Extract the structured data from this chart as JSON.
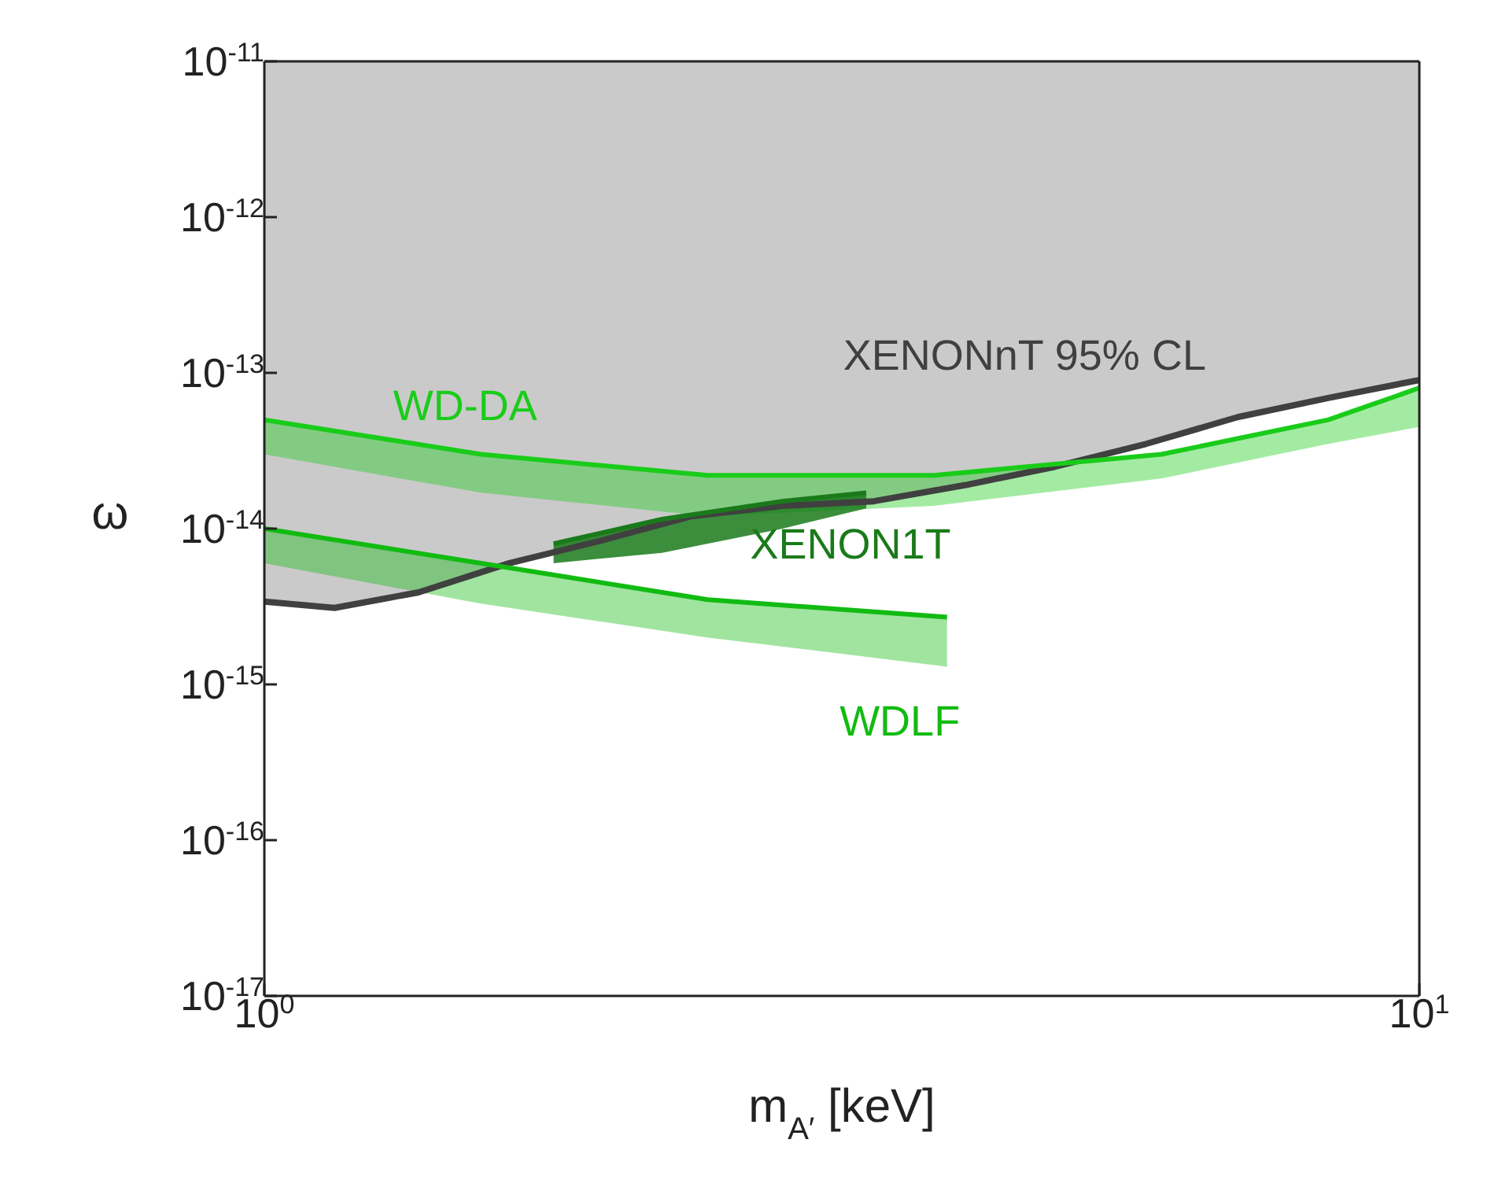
{
  "chart_data": {
    "type": "line",
    "xlabel": "m$_{A′}$ [keV]",
    "ylabel": "ω",
    "log": "xy",
    "grid": false,
    "legend": false,
    "marker": "none",
    "xlim": [
      1,
      10
    ],
    "xticks": [
      {
        "value": 1,
        "label": "10$^{0}$"
      },
      {
        "value": 10,
        "label": "10$^{1}$"
      }
    ],
    "ylim": [
      1e-17,
      1e-11
    ],
    "yticks": [
      {
        "value": 1e-17,
        "label": "10$^{-17}$"
      },
      {
        "value": 1e-16,
        "label": "10$^{-16}$"
      },
      {
        "value": 1e-15,
        "label": "10$^{-15}$"
      },
      {
        "value": 1e-14,
        "label": "10$^{-14}$"
      },
      {
        "value": 1e-13,
        "label": "10$^{-13}$"
      },
      {
        "value": 1e-12,
        "label": "10$^{-12}$"
      },
      {
        "value": 1e-11,
        "label": "10$^{-11}$"
      }
    ],
    "series": [
      {
        "name": "XENONnT 95% CL",
        "color": "#404040",
        "x": [
          1,
          1.15,
          1.36,
          1.63,
          1.96,
          2.34,
          2.81,
          3.37,
          4.04,
          4.84,
          5.8,
          6.96,
          8.34,
          10
        ],
        "values": [
          3.4e-15,
          3.1e-15,
          3.9e-15,
          6e-15,
          8.4e-15,
          1.2e-14,
          1.4e-14,
          1.5e-14,
          1.9e-14,
          2.5e-14,
          3.5e-14,
          5.2e-14,
          6.9e-14,
          9e-14
        ],
        "lower": [
          3.4e-15,
          3.1e-15,
          3.9e-15,
          6e-15,
          8.4e-15,
          1.2e-14,
          1.4e-14,
          1.5e-14,
          1.9e-14,
          2.5e-14,
          3.5e-14,
          5.2e-14,
          6.9e-14,
          9e-14
        ],
        "upper": [
          1e-11,
          1e-11,
          1e-11,
          1e-11,
          1e-11,
          1e-11,
          1e-11,
          1e-11,
          1e-11,
          1e-11,
          1e-11,
          1e-11,
          1e-11,
          1e-11
        ]
      },
      {
        "name": "WD-DA",
        "color": "#1acc1a",
        "x": [
          1,
          1.54,
          2.42,
          3.8,
          5.98,
          8.34,
          10
        ],
        "values": [
          5e-14,
          3e-14,
          2.2e-14,
          2.2e-14,
          3e-14,
          5e-14,
          8e-14
        ],
        "lower": [
          3e-14,
          1.7e-14,
          1.2e-14,
          1.4e-14,
          2.1e-14,
          3.5e-14,
          4.5e-14
        ],
        "upper": [
          5e-14,
          3e-14,
          2.2e-14,
          2.2e-14,
          3e-14,
          5e-14,
          8e-14
        ]
      },
      {
        "name": "WDLF",
        "color": "#12bb12",
        "x": [
          1,
          1.54,
          2.42,
          3.9
        ],
        "values": [
          1e-14,
          6e-15,
          3.5e-15,
          2.7e-15
        ],
        "lower": [
          6e-15,
          3.3e-15,
          2e-15,
          1.3e-15
        ],
        "upper": [
          1e-14,
          6e-15,
          3.5e-15,
          2.7e-15
        ]
      },
      {
        "name": "XENON1T",
        "color": "#1a7a1a",
        "x": [
          1.78,
          2.21,
          2.81,
          3.32
        ],
        "values": [
          8e-15,
          1.15e-14,
          1.5e-14,
          1.7e-14
        ],
        "lower": [
          6e-15,
          7e-15,
          1e-14,
          1.35e-14
        ],
        "upper": [
          8e-15,
          1.15e-14,
          1.5e-14,
          1.7e-14
        ]
      }
    ]
  }
}
